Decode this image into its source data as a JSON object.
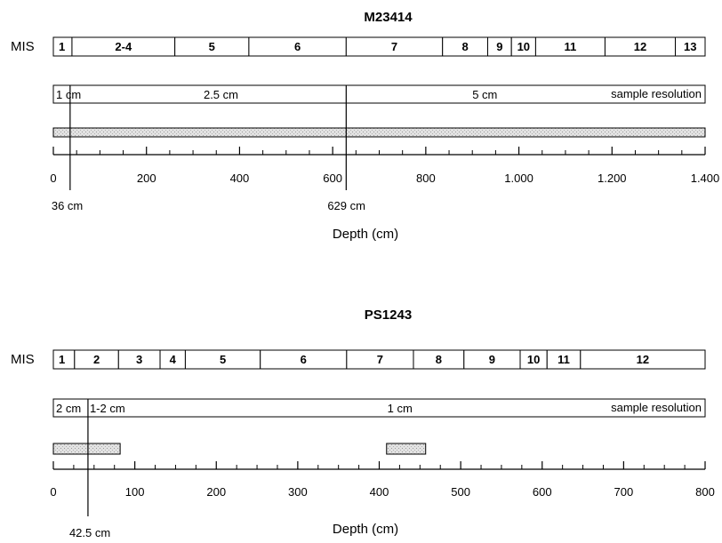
{
  "panels": [
    {
      "title": "M23414",
      "mis_label": "MIS",
      "resolution_label": "sample resolution",
      "axis_title": "Depth (cm)",
      "depth_range": [
        0,
        1400
      ],
      "mis_stages": [
        {
          "label": "1",
          "from": 0,
          "to": 40
        },
        {
          "label": "2-4",
          "from": 40,
          "to": 261
        },
        {
          "label": "5",
          "from": 261,
          "to": 420
        },
        {
          "label": "6",
          "from": 420,
          "to": 629
        },
        {
          "label": "7",
          "from": 629,
          "to": 836
        },
        {
          "label": "8",
          "from": 836,
          "to": 933
        },
        {
          "label": "9",
          "from": 933,
          "to": 984
        },
        {
          "label": "10",
          "from": 984,
          "to": 1036
        },
        {
          "label": "11",
          "from": 1036,
          "to": 1185
        },
        {
          "label": "12",
          "from": 1185,
          "to": 1336
        },
        {
          "label": "13",
          "from": 1336,
          "to": 1400
        }
      ],
      "resolution_segments": [
        {
          "label": "1 cm",
          "from": 0,
          "to": 36
        },
        {
          "label": "2.5 cm",
          "from": 36,
          "to": 629
        },
        {
          "label": "5 cm",
          "from": 629,
          "to": 1400
        }
      ],
      "sampled_intervals": [
        {
          "from": 0,
          "to": 1400
        }
      ],
      "ticks": [
        {
          "value": 0,
          "label": "0"
        },
        {
          "value": 200,
          "label": "200"
        },
        {
          "value": 400,
          "label": "400"
        },
        {
          "value": 600,
          "label": "600"
        },
        {
          "value": 800,
          "label": "800"
        },
        {
          "value": 1000,
          "label": "1.000"
        },
        {
          "value": 1200,
          "label": "1.200"
        },
        {
          "value": 1400,
          "label": "1.400"
        }
      ],
      "minor_tick_step": 50,
      "markers": [
        {
          "value": 36,
          "label": "36 cm"
        },
        {
          "value": 629,
          "label": "629 cm"
        }
      ]
    },
    {
      "title": "PS1243",
      "mis_label": "MIS",
      "resolution_label": "sample resolution",
      "axis_title": "Depth (cm)",
      "depth_range": [
        0,
        800
      ],
      "mis_stages": [
        {
          "label": "1",
          "from": 0,
          "to": 26
        },
        {
          "label": "2",
          "from": 26,
          "to": 80
        },
        {
          "label": "3",
          "from": 80,
          "to": 131
        },
        {
          "label": "4",
          "from": 131,
          "to": 162
        },
        {
          "label": "5",
          "from": 162,
          "to": 254
        },
        {
          "label": "6",
          "from": 254,
          "to": 360
        },
        {
          "label": "7",
          "from": 360,
          "to": 442
        },
        {
          "label": "8",
          "from": 442,
          "to": 504
        },
        {
          "label": "9",
          "from": 504,
          "to": 573
        },
        {
          "label": "10",
          "from": 573,
          "to": 606
        },
        {
          "label": "11",
          "from": 606,
          "to": 647
        },
        {
          "label": "12",
          "from": 647,
          "to": 800
        }
      ],
      "resolution_segments": [
        {
          "label": "2 cm",
          "from": 0,
          "to": 42.5
        },
        {
          "label": "1-2 cm",
          "from": 42.5,
          "to": 100
        },
        {
          "label": "1 cm",
          "from": 100,
          "to": 800
        }
      ],
      "sampled_intervals": [
        {
          "from": 0,
          "to": 82
        },
        {
          "from": 409,
          "to": 457
        }
      ],
      "ticks": [
        {
          "value": 0,
          "label": "0"
        },
        {
          "value": 100,
          "label": "100"
        },
        {
          "value": 200,
          "label": "200"
        },
        {
          "value": 300,
          "label": "300"
        },
        {
          "value": 400,
          "label": "400"
        },
        {
          "value": 500,
          "label": "500"
        },
        {
          "value": 600,
          "label": "600"
        },
        {
          "value": 700,
          "label": "700"
        },
        {
          "value": 800,
          "label": "800"
        }
      ],
      "minor_tick_step": 25,
      "markers": [
        {
          "value": 42.5,
          "label": "42.5 cm"
        }
      ]
    }
  ],
  "colors": {
    "line": "#000000",
    "sample_fill": "#d6d6d6"
  }
}
